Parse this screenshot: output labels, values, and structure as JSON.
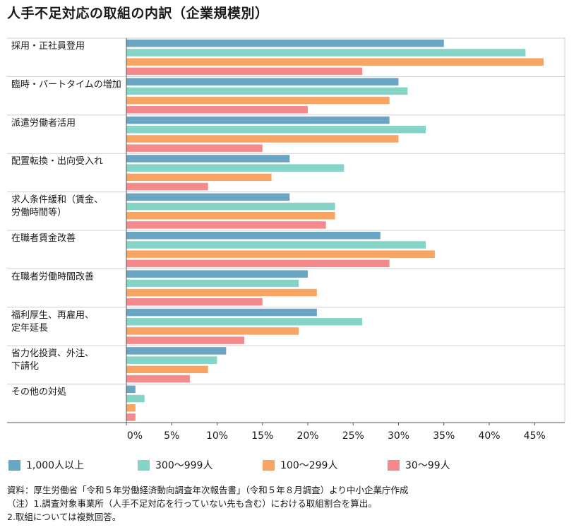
{
  "title": "人手不足対応の取組の内訳（企業規模別）",
  "colors": {
    "s1": "#6aa5c4",
    "s2": "#86d3c8",
    "s3": "#f7a564",
    "s4": "#f58a8c",
    "grid": "#cfcfcf",
    "axis": "#555555"
  },
  "chart_data": {
    "type": "bar",
    "orientation": "horizontal",
    "categories": [
      [
        "採用・正社員登用"
      ],
      [
        "臨時・パートタイムの増加"
      ],
      [
        "派遣労働者活用"
      ],
      [
        "配置転換・出向受入れ"
      ],
      [
        "求人条件緩和（賃金、",
        "労働時間等）"
      ],
      [
        "在職者賃金改善"
      ],
      [
        "在職者労働時間改善"
      ],
      [
        "福利厚生、再雇用、",
        "定年延長"
      ],
      [
        "省力化投資、外注、",
        "下請化"
      ],
      [
        "その他の対処"
      ]
    ],
    "series": [
      {
        "name": "1,000人以上",
        "values": [
          35,
          30,
          29,
          18,
          18,
          28,
          20,
          21,
          11,
          1
        ]
      },
      {
        "name": "300～999人",
        "values": [
          44,
          31,
          33,
          24,
          23,
          33,
          19,
          26,
          10,
          2
        ]
      },
      {
        "name": "100～299人",
        "values": [
          46,
          29,
          30,
          16,
          23,
          34,
          21,
          19,
          9,
          1
        ]
      },
      {
        "name": "30～99人",
        "values": [
          26,
          20,
          15,
          9,
          22,
          29,
          15,
          13,
          7,
          1
        ]
      }
    ],
    "xlim": [
      0,
      48
    ],
    "xticks": [
      "0%",
      "5%",
      "10%",
      "15%",
      "20%",
      "25%",
      "30%",
      "35%",
      "40%",
      "45%"
    ],
    "xtick_values": [
      0,
      5,
      10,
      15,
      20,
      25,
      30,
      35,
      40,
      45
    ],
    "legend_position": "bottom",
    "grid": "horizontal separators between categories"
  },
  "notes": [
    "資料：厚生労働省「令和５年労働経済動向調査年次報告書」（令和５年８月調査）より中小企業庁作成",
    "（注）1.調査対象事業所（人手不足対応を行っていない先も含む）における取組割合を算出。",
    "2.取組については複数回答。"
  ]
}
